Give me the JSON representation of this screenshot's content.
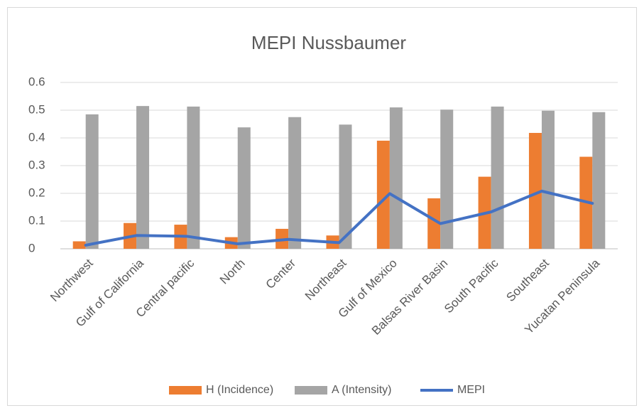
{
  "chart_data": {
    "type": "bar",
    "title": "MEPI Nussbaumer",
    "categories": [
      "Northwest",
      "Gulf of California",
      "Central pacific",
      "North",
      "Center",
      "Northeast",
      "Gulf of Mexico",
      "Balsas River Basin",
      "South Pacific",
      "Southeast",
      "Yucatan Peninsula"
    ],
    "series": [
      {
        "name": "H (Incidence)",
        "color": "#ed7d31",
        "type": "bar",
        "values": [
          0.027,
          0.093,
          0.087,
          0.042,
          0.072,
          0.048,
          0.39,
          0.182,
          0.26,
          0.418,
          0.332
        ]
      },
      {
        "name": "A (Intensity)",
        "color": "#a5a5a5",
        "type": "bar",
        "values": [
          0.485,
          0.515,
          0.513,
          0.438,
          0.475,
          0.448,
          0.51,
          0.502,
          0.513,
          0.498,
          0.493
        ]
      },
      {
        "name": "MEPI",
        "color": "#4472c4",
        "type": "line",
        "values": [
          0.013,
          0.048,
          0.045,
          0.018,
          0.034,
          0.022,
          0.199,
          0.091,
          0.133,
          0.208,
          0.164
        ]
      }
    ],
    "ylim": [
      0,
      0.6
    ],
    "yticks": [
      0,
      0.1,
      0.2,
      0.3,
      0.4,
      0.5,
      0.6
    ],
    "grid": true,
    "legend": "bottom"
  }
}
